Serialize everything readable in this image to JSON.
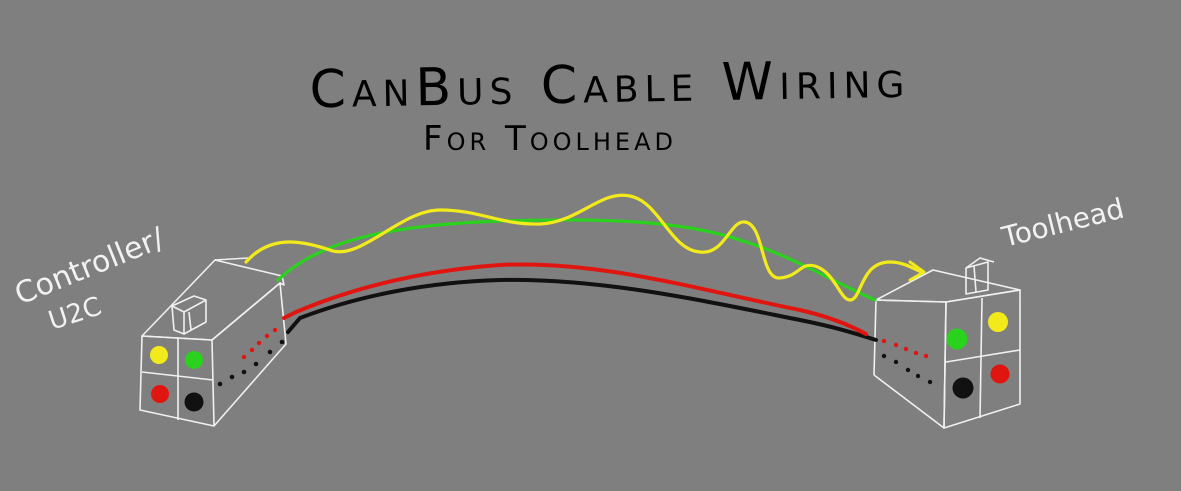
{
  "title": "CanBus Cable Wiring",
  "subtitle": "For Toolhead",
  "labels": {
    "controller_line1": "Controller/",
    "controller_line2": "U2C",
    "toolhead": "Toolhead"
  },
  "colors": {
    "background": "#7f7f7f",
    "yellow": "#f2ea1b",
    "green": "#2ad21d",
    "red": "#e1150f",
    "black": "#111111",
    "box_outline": "#f0f0f0"
  },
  "wires": [
    "yellow",
    "green",
    "red",
    "black"
  ],
  "controller_pins": [
    "yellow",
    "green",
    "red",
    "black"
  ],
  "toolhead_pins": [
    "green",
    "yellow",
    "black",
    "red"
  ]
}
